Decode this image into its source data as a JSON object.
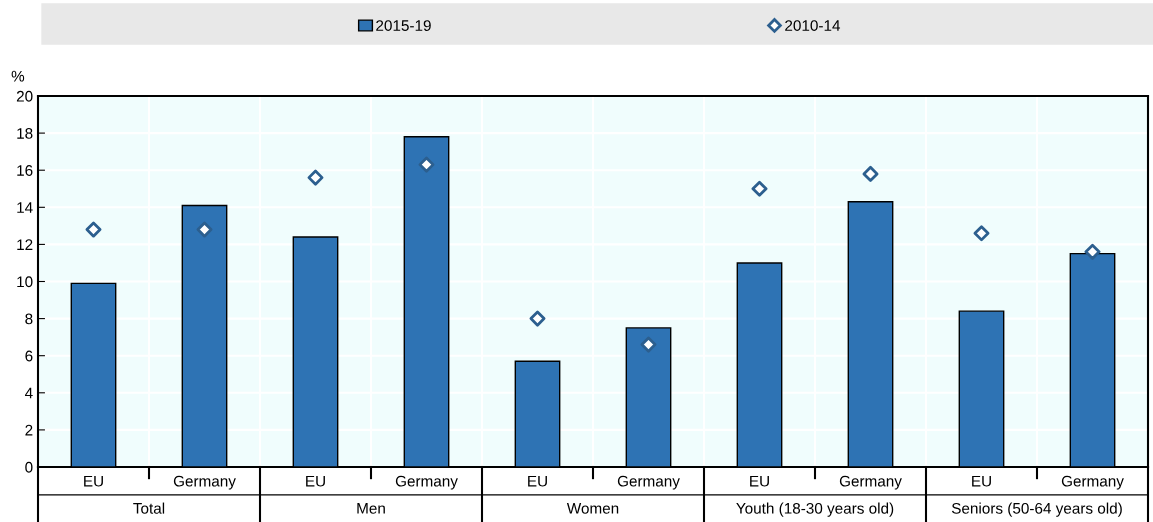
{
  "chart_data": {
    "type": "bar",
    "ylabel": "%",
    "categories": [
      "EU",
      "Germany",
      "EU",
      "Germany",
      "EU",
      "Germany",
      "EU",
      "Germany",
      "EU",
      "Germany"
    ],
    "annotations": [
      "Total",
      "Men",
      "Women",
      "Youth (18-30 years old)",
      "Seniors (50-64 years old)"
    ],
    "series": [
      {
        "name": "2015-19",
        "color": "#2e73b4",
        "values": [
          9.9,
          14.1,
          12.4,
          17.8,
          5.7,
          7.5,
          11.0,
          14.3,
          8.4,
          11.5
        ]
      },
      {
        "name": "2010-14",
        "type": "scatter",
        "marker": "diamond",
        "color": "#2c5f8f",
        "values": [
          12.8,
          12.8,
          15.6,
          16.3,
          8.0,
          6.6,
          15.0,
          15.8,
          12.6,
          11.6
        ]
      }
    ],
    "ylim": [
      0,
      20
    ],
    "yticks": [
      0,
      2,
      4,
      6,
      8,
      10,
      12,
      14,
      16,
      18,
      20
    ],
    "grid": true,
    "legend": "top"
  }
}
